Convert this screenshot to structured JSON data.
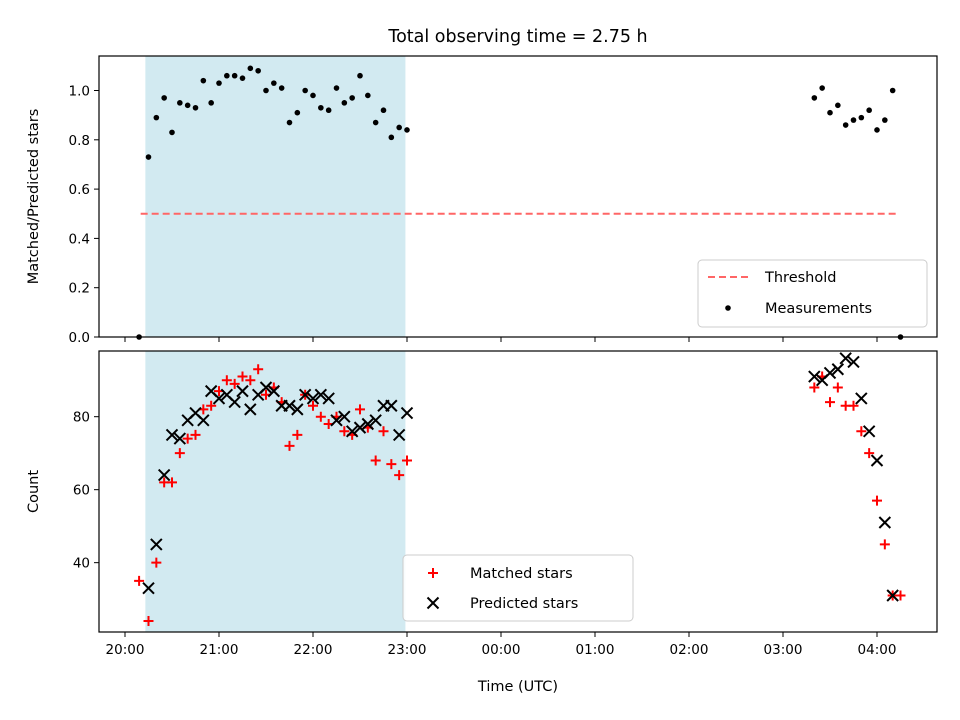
{
  "chart_data": {
    "title": "Total observing time = 2.75 h",
    "xlabel": "Time (UTC)",
    "x_ticks": [
      "20:00",
      "21:00",
      "22:00",
      "23:00",
      "00:00",
      "01:00",
      "02:00",
      "03:00",
      "04:00"
    ],
    "shaded_region": {
      "from": "20:13",
      "to": "22:59",
      "color": "#add8e6"
    },
    "panels": [
      {
        "type": "scatter",
        "ylabel": "Matched/Predicted stars",
        "ylim": [
          0,
          1.14
        ],
        "y_ticks": [
          "0.0",
          "0.2",
          "0.4",
          "0.6",
          "0.8",
          "1.0"
        ],
        "legend_position": "lower-right",
        "threshold": {
          "name": "Threshold",
          "y": 0.5,
          "x_from": "20:10",
          "x_to": "04:12",
          "color": "#ff6666"
        },
        "series": [
          {
            "name": "Measurements",
            "color": "#000000",
            "points": [
              [
                "20:09",
                0.0
              ],
              [
                "20:15",
                0.73
              ],
              [
                "20:20",
                0.89
              ],
              [
                "20:25",
                0.97
              ],
              [
                "20:30",
                0.83
              ],
              [
                "20:35",
                0.95
              ],
              [
                "20:40",
                0.94
              ],
              [
                "20:45",
                0.93
              ],
              [
                "20:50",
                1.04
              ],
              [
                "20:55",
                0.95
              ],
              [
                "21:00",
                1.03
              ],
              [
                "21:05",
                1.06
              ],
              [
                "21:10",
                1.06
              ],
              [
                "21:15",
                1.05
              ],
              [
                "21:20",
                1.09
              ],
              [
                "21:25",
                1.08
              ],
              [
                "21:30",
                1.0
              ],
              [
                "21:35",
                1.03
              ],
              [
                "21:40",
                1.01
              ],
              [
                "21:45",
                0.87
              ],
              [
                "21:50",
                0.91
              ],
              [
                "21:55",
                1.0
              ],
              [
                "22:00",
                0.98
              ],
              [
                "22:05",
                0.93
              ],
              [
                "22:10",
                0.92
              ],
              [
                "22:15",
                1.01
              ],
              [
                "22:20",
                0.95
              ],
              [
                "22:25",
                0.97
              ],
              [
                "22:30",
                1.06
              ],
              [
                "22:35",
                0.98
              ],
              [
                "22:40",
                0.87
              ],
              [
                "22:45",
                0.92
              ],
              [
                "22:50",
                0.81
              ],
              [
                "22:55",
                0.85
              ],
              [
                "23:00",
                0.84
              ],
              [
                "03:20",
                0.97
              ],
              [
                "03:25",
                1.01
              ],
              [
                "03:30",
                0.91
              ],
              [
                "03:35",
                0.94
              ],
              [
                "03:40",
                0.86
              ],
              [
                "03:45",
                0.88
              ],
              [
                "03:50",
                0.89
              ],
              [
                "03:55",
                0.92
              ],
              [
                "04:00",
                0.84
              ],
              [
                "04:05",
                0.88
              ],
              [
                "04:10",
                1.0
              ],
              [
                "04:15",
                0.0
              ]
            ]
          }
        ]
      },
      {
        "type": "scatter",
        "ylabel": "Count",
        "ylim": [
          21,
          98
        ],
        "y_ticks": [
          "40",
          "60",
          "80"
        ],
        "legend_position": "bottom-center",
        "series": [
          {
            "name": "Matched stars",
            "marker": "+",
            "color": "#ff0000",
            "points": [
              [
                "20:09",
                35
              ],
              [
                "20:15",
                24
              ],
              [
                "20:20",
                40
              ],
              [
                "20:25",
                62
              ],
              [
                "20:30",
                62
              ],
              [
                "20:35",
                70
              ],
              [
                "20:40",
                74
              ],
              [
                "20:45",
                75
              ],
              [
                "20:50",
                82
              ],
              [
                "20:55",
                83
              ],
              [
                "21:00",
                87
              ],
              [
                "21:05",
                90
              ],
              [
                "21:10",
                89
              ],
              [
                "21:15",
                91
              ],
              [
                "21:20",
                90
              ],
              [
                "21:25",
                93
              ],
              [
                "21:30",
                86
              ],
              [
                "21:35",
                88
              ],
              [
                "21:40",
                84
              ],
              [
                "21:45",
                72
              ],
              [
                "21:50",
                75
              ],
              [
                "21:55",
                86
              ],
              [
                "22:00",
                83
              ],
              [
                "22:05",
                80
              ],
              [
                "22:10",
                78
              ],
              [
                "22:15",
                80
              ],
              [
                "22:20",
                76
              ],
              [
                "22:25",
                75
              ],
              [
                "22:30",
                82
              ],
              [
                "22:35",
                77
              ],
              [
                "22:40",
                68
              ],
              [
                "22:45",
                76
              ],
              [
                "22:50",
                67
              ],
              [
                "22:55",
                64
              ],
              [
                "23:00",
                68
              ],
              [
                "03:20",
                88
              ],
              [
                "03:25",
                91
              ],
              [
                "03:30",
                84
              ],
              [
                "03:35",
                88
              ],
              [
                "03:40",
                83
              ],
              [
                "03:45",
                83
              ],
              [
                "03:50",
                76
              ],
              [
                "03:55",
                70
              ],
              [
                "04:00",
                57
              ],
              [
                "04:05",
                45
              ],
              [
                "04:10",
                31
              ],
              [
                "04:15",
                31
              ]
            ]
          },
          {
            "name": "Predicted stars",
            "marker": "x",
            "color": "#000000",
            "points": [
              [
                "20:15",
                33
              ],
              [
                "20:20",
                45
              ],
              [
                "20:25",
                64
              ],
              [
                "20:30",
                75
              ],
              [
                "20:35",
                74
              ],
              [
                "20:40",
                79
              ],
              [
                "20:45",
                81
              ],
              [
                "20:50",
                79
              ],
              [
                "20:55",
                87
              ],
              [
                "21:00",
                85
              ],
              [
                "21:05",
                86
              ],
              [
                "21:10",
                84
              ],
              [
                "21:15",
                87
              ],
              [
                "21:20",
                82
              ],
              [
                "21:25",
                86
              ],
              [
                "21:30",
                88
              ],
              [
                "21:35",
                87
              ],
              [
                "21:40",
                83
              ],
              [
                "21:45",
                83
              ],
              [
                "21:50",
                82
              ],
              [
                "21:55",
                86
              ],
              [
                "22:00",
                85
              ],
              [
                "22:05",
                86
              ],
              [
                "22:10",
                85
              ],
              [
                "22:15",
                79
              ],
              [
                "22:20",
                80
              ],
              [
                "22:25",
                76
              ],
              [
                "22:30",
                77
              ],
              [
                "22:35",
                78
              ],
              [
                "22:40",
                79
              ],
              [
                "22:45",
                83
              ],
              [
                "22:50",
                83
              ],
              [
                "22:55",
                75
              ],
              [
                "23:00",
                81
              ],
              [
                "03:20",
                91
              ],
              [
                "03:25",
                90
              ],
              [
                "03:30",
                92
              ],
              [
                "03:35",
                93
              ],
              [
                "03:40",
                96
              ],
              [
                "03:45",
                95
              ],
              [
                "03:50",
                85
              ],
              [
                "03:55",
                76
              ],
              [
                "04:00",
                68
              ],
              [
                "04:05",
                51
              ],
              [
                "04:10",
                31
              ]
            ]
          }
        ]
      }
    ]
  }
}
